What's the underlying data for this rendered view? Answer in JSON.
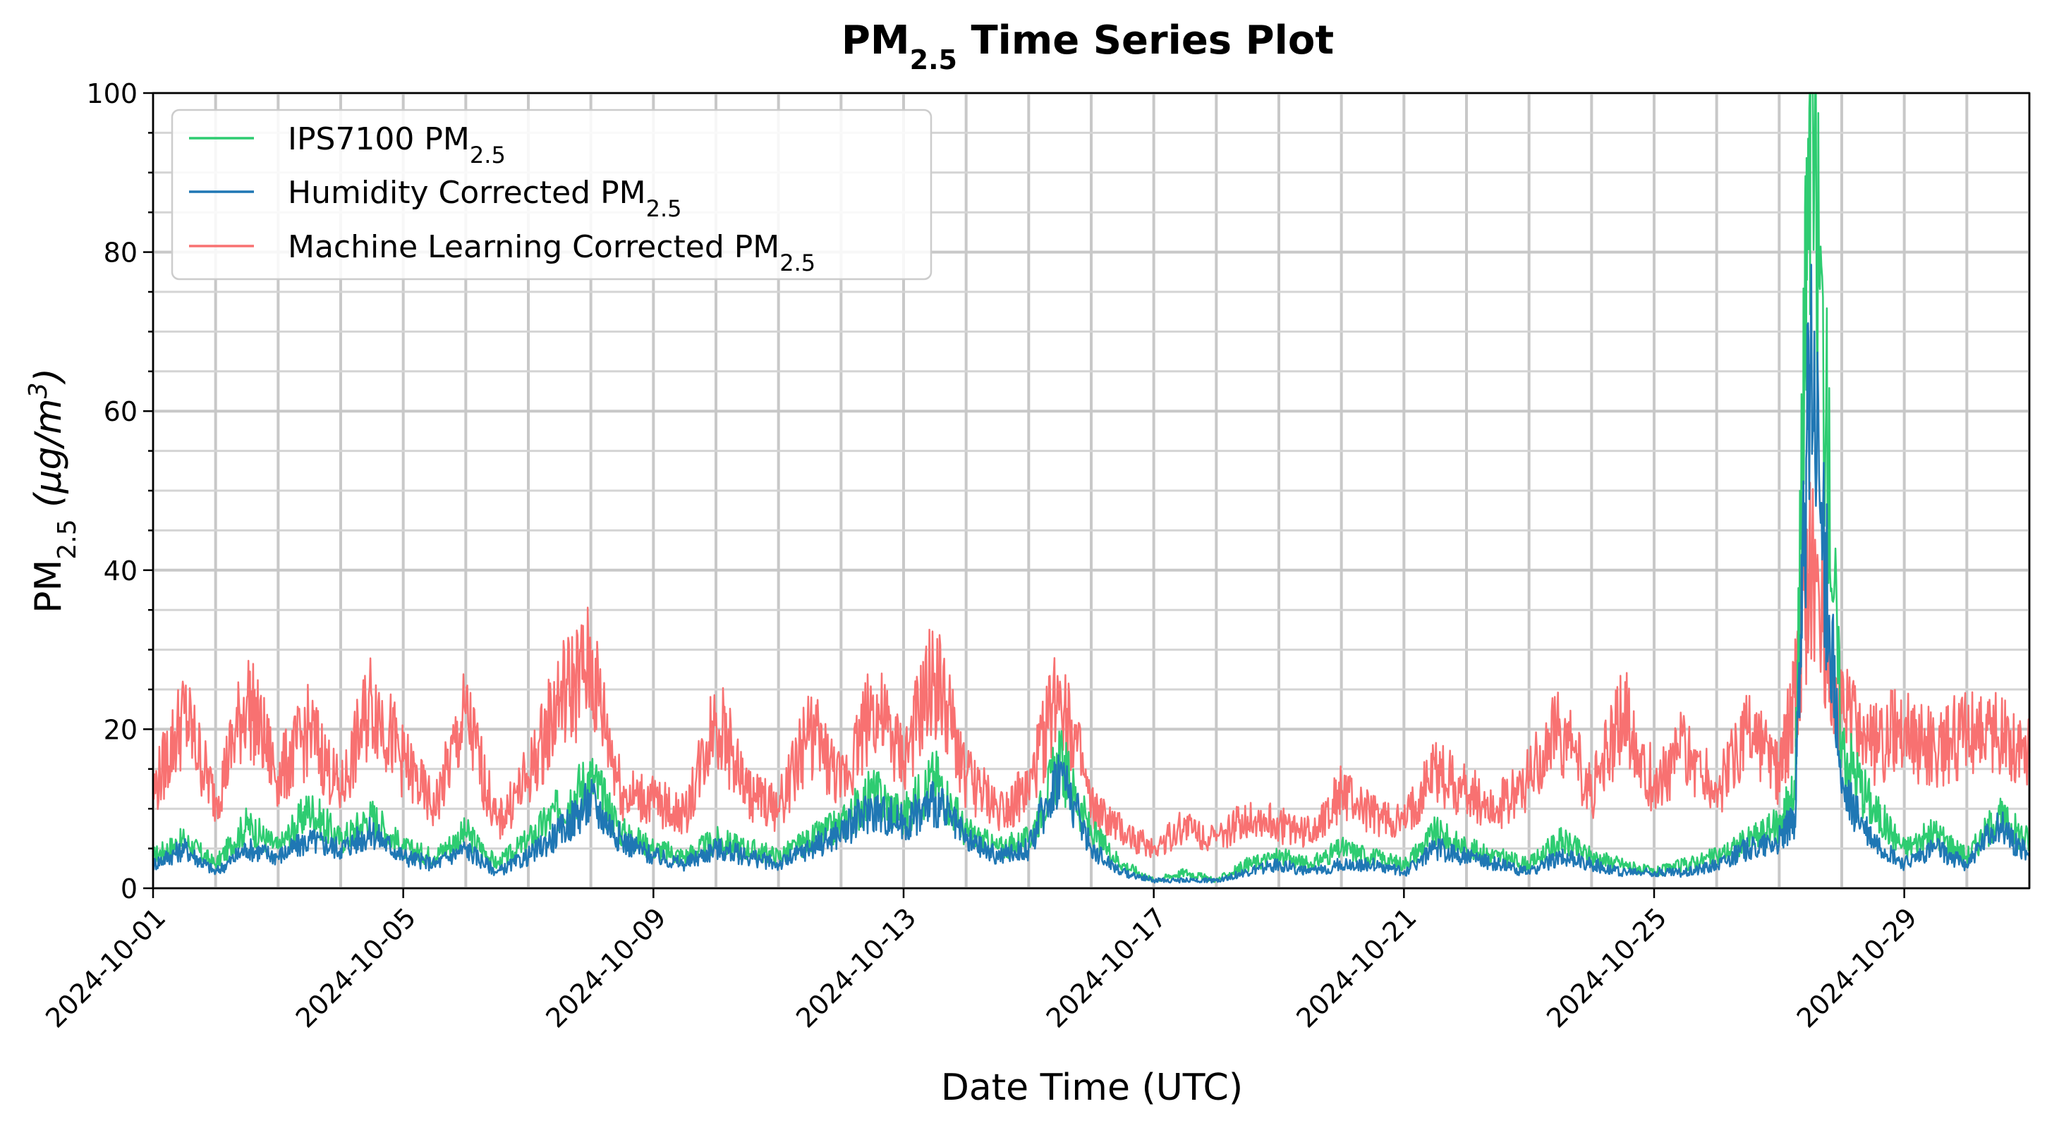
{
  "chart_data": {
    "type": "line",
    "title": {
      "main": "PM",
      "sub": "2.5",
      "rest": " Time Series Plot"
    },
    "xlabel": "Date Time (UTC)",
    "ylabel": {
      "main": "PM",
      "sub": "2.5",
      "unit": " (μg/m",
      "sup": "3",
      "close": ")"
    },
    "ylim": [
      0,
      100
    ],
    "xlim": [
      "2024-10-01",
      "2024-10-31"
    ],
    "grid": true,
    "legend_position": "top-left",
    "y_ticks": [
      "0",
      "20",
      "40",
      "60",
      "80",
      "100"
    ],
    "x_ticks": [
      {
        "date": "2024-10-01",
        "label": "2024-10-01"
      },
      {
        "date": "2024-10-05",
        "label": "2024-10-05"
      },
      {
        "date": "2024-10-09",
        "label": "2024-10-09"
      },
      {
        "date": "2024-10-13",
        "label": "2024-10-13"
      },
      {
        "date": "2024-10-17",
        "label": "2024-10-17"
      },
      {
        "date": "2024-10-21",
        "label": "2024-10-21"
      },
      {
        "date": "2024-10-25",
        "label": "2024-10-25"
      },
      {
        "date": "2024-10-29",
        "label": "2024-10-29"
      }
    ],
    "series": [
      {
        "name": {
          "main": "IPS7100 PM",
          "sub": "2.5"
        },
        "color": "#2ecc71",
        "x": [
          "2024-10-01T00:00",
          "2024-10-01T12:00",
          "2024-10-02T00:00",
          "2024-10-02T12:00",
          "2024-10-03T00:00",
          "2024-10-03T12:00",
          "2024-10-04T00:00",
          "2024-10-04T12:00",
          "2024-10-05T00:00",
          "2024-10-05T12:00",
          "2024-10-06T00:00",
          "2024-10-06T12:00",
          "2024-10-07T00:00",
          "2024-10-07T12:00",
          "2024-10-08T00:00",
          "2024-10-08T12:00",
          "2024-10-09T00:00",
          "2024-10-09T12:00",
          "2024-10-10T00:00",
          "2024-10-10T12:00",
          "2024-10-11T00:00",
          "2024-10-11T12:00",
          "2024-10-12T00:00",
          "2024-10-12T12:00",
          "2024-10-13T00:00",
          "2024-10-13T12:00",
          "2024-10-14T00:00",
          "2024-10-14T12:00",
          "2024-10-15T00:00",
          "2024-10-15T12:00",
          "2024-10-16T00:00",
          "2024-10-16T12:00",
          "2024-10-17T00:00",
          "2024-10-17T12:00",
          "2024-10-18T00:00",
          "2024-10-18T12:00",
          "2024-10-19T00:00",
          "2024-10-19T12:00",
          "2024-10-20T00:00",
          "2024-10-20T12:00",
          "2024-10-21T00:00",
          "2024-10-21T12:00",
          "2024-10-22T00:00",
          "2024-10-22T12:00",
          "2024-10-23T00:00",
          "2024-10-23T12:00",
          "2024-10-24T00:00",
          "2024-10-24T12:00",
          "2024-10-25T00:00",
          "2024-10-25T12:00",
          "2024-10-26T00:00",
          "2024-10-26T12:00",
          "2024-10-27T00:00",
          "2024-10-27T06:00",
          "2024-10-27T12:00",
          "2024-10-28T00:00",
          "2024-10-28T12:00",
          "2024-10-29T00:00",
          "2024-10-29T12:00",
          "2024-10-30T00:00",
          "2024-10-30T12:00",
          "2024-10-31T00:00"
        ],
        "values": [
          4,
          6,
          3,
          8,
          5,
          10,
          6,
          9,
          5,
          4,
          7,
          3,
          6,
          10,
          14,
          7,
          5,
          4,
          6,
          5,
          4,
          6,
          8,
          12,
          9,
          14,
          7,
          5,
          6,
          16,
          7,
          3,
          1,
          2,
          1,
          3,
          4,
          3,
          5,
          4,
          3,
          7,
          5,
          4,
          3,
          6,
          4,
          3,
          2,
          3,
          4,
          6,
          8,
          12,
          100,
          18,
          10,
          5,
          7,
          4,
          9,
          6
        ]
      },
      {
        "name": {
          "main": "Humidity Corrected PM",
          "sub": "2.5"
        },
        "color": "#1f77b4",
        "x": [
          "2024-10-01T00:00",
          "2024-10-01T12:00",
          "2024-10-02T00:00",
          "2024-10-02T12:00",
          "2024-10-03T00:00",
          "2024-10-03T12:00",
          "2024-10-04T00:00",
          "2024-10-04T12:00",
          "2024-10-05T00:00",
          "2024-10-05T12:00",
          "2024-10-06T00:00",
          "2024-10-06T12:00",
          "2024-10-07T00:00",
          "2024-10-07T12:00",
          "2024-10-08T00:00",
          "2024-10-08T12:00",
          "2024-10-09T00:00",
          "2024-10-09T12:00",
          "2024-10-10T00:00",
          "2024-10-10T12:00",
          "2024-10-11T00:00",
          "2024-10-11T12:00",
          "2024-10-12T00:00",
          "2024-10-12T12:00",
          "2024-10-13T00:00",
          "2024-10-13T12:00",
          "2024-10-14T00:00",
          "2024-10-14T12:00",
          "2024-10-15T00:00",
          "2024-10-15T12:00",
          "2024-10-16T00:00",
          "2024-10-16T12:00",
          "2024-10-17T00:00",
          "2024-10-17T12:00",
          "2024-10-18T00:00",
          "2024-10-18T12:00",
          "2024-10-19T00:00",
          "2024-10-19T12:00",
          "2024-10-20T00:00",
          "2024-10-20T12:00",
          "2024-10-21T00:00",
          "2024-10-21T12:00",
          "2024-10-22T00:00",
          "2024-10-22T12:00",
          "2024-10-23T00:00",
          "2024-10-23T12:00",
          "2024-10-24T00:00",
          "2024-10-24T12:00",
          "2024-10-25T00:00",
          "2024-10-25T12:00",
          "2024-10-26T00:00",
          "2024-10-26T12:00",
          "2024-10-27T00:00",
          "2024-10-27T06:00",
          "2024-10-27T12:00",
          "2024-10-28T00:00",
          "2024-10-28T12:00",
          "2024-10-29T00:00",
          "2024-10-29T12:00",
          "2024-10-30T00:00",
          "2024-10-30T12:00",
          "2024-10-31T00:00"
        ],
        "values": [
          3,
          5,
          2,
          5,
          4,
          6,
          5,
          7,
          4,
          3,
          5,
          2,
          4,
          7,
          11,
          6,
          4,
          3,
          5,
          4,
          3,
          5,
          7,
          10,
          8,
          11,
          6,
          4,
          5,
          15,
          5,
          2,
          1,
          1,
          1,
          2,
          3,
          2,
          3,
          3,
          2,
          5,
          4,
          3,
          2,
          4,
          3,
          2,
          2,
          2,
          3,
          5,
          6,
          9,
          66,
          12,
          6,
          3,
          5,
          3,
          8,
          4
        ]
      },
      {
        "name": {
          "main": "Machine Learning Corrected PM",
          "sub": "2.5"
        },
        "color": "#f87171",
        "x": [
          "2024-10-01T00:00",
          "2024-10-01T12:00",
          "2024-10-02T00:00",
          "2024-10-02T12:00",
          "2024-10-03T00:00",
          "2024-10-03T12:00",
          "2024-10-04T00:00",
          "2024-10-04T12:00",
          "2024-10-05T00:00",
          "2024-10-05T12:00",
          "2024-10-06T00:00",
          "2024-10-06T12:00",
          "2024-10-07T00:00",
          "2024-10-07T12:00",
          "2024-10-08T00:00",
          "2024-10-08T12:00",
          "2024-10-09T00:00",
          "2024-10-09T12:00",
          "2024-10-10T00:00",
          "2024-10-10T12:00",
          "2024-10-11T00:00",
          "2024-10-11T12:00",
          "2024-10-12T00:00",
          "2024-10-12T12:00",
          "2024-10-13T00:00",
          "2024-10-13T12:00",
          "2024-10-14T00:00",
          "2024-10-14T12:00",
          "2024-10-15T00:00",
          "2024-10-15T12:00",
          "2024-10-16T00:00",
          "2024-10-16T12:00",
          "2024-10-17T00:00",
          "2024-10-17T12:00",
          "2024-10-18T00:00",
          "2024-10-18T12:00",
          "2024-10-19T00:00",
          "2024-10-19T12:00",
          "2024-10-20T00:00",
          "2024-10-20T12:00",
          "2024-10-21T00:00",
          "2024-10-21T12:00",
          "2024-10-22T00:00",
          "2024-10-22T12:00",
          "2024-10-23T00:00",
          "2024-10-23T12:00",
          "2024-10-24T00:00",
          "2024-10-24T12:00",
          "2024-10-25T00:00",
          "2024-10-25T12:00",
          "2024-10-26T00:00",
          "2024-10-26T12:00",
          "2024-10-27T00:00",
          "2024-10-27T06:00",
          "2024-10-27T12:00",
          "2024-10-28T00:00",
          "2024-10-28T12:00",
          "2024-10-29T00:00",
          "2024-10-29T12:00",
          "2024-10-30T00:00",
          "2024-10-30T12:00",
          "2024-10-31T00:00"
        ],
        "values": [
          12,
          22,
          11,
          24,
          14,
          20,
          12,
          24,
          16,
          10,
          22,
          8,
          14,
          24,
          28,
          12,
          11,
          9,
          22,
          12,
          10,
          20,
          13,
          23,
          16,
          27,
          14,
          10,
          12,
          26,
          10,
          7,
          5,
          8,
          6,
          9,
          8,
          7,
          12,
          9,
          8,
          15,
          12,
          10,
          14,
          20,
          12,
          22,
          13,
          18,
          12,
          20,
          14,
          24,
          40,
          22,
          18,
          20,
          17,
          20,
          19,
          17
        ]
      }
    ]
  }
}
